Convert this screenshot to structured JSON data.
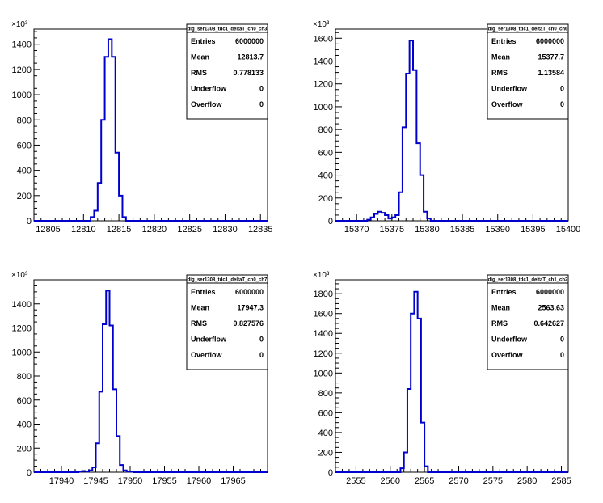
{
  "colors": {
    "histogram_line": "#0000cc",
    "frame": "#000000",
    "background": "#ffffff"
  },
  "chart_data": [
    {
      "type": "bar",
      "histogram_name": "dig_ser1308_tdc1_deltaT_ch0_ch3",
      "y_exponent": "×10³",
      "xlim": [
        12803,
        12836
      ],
      "ylim": [
        0,
        1520
      ],
      "x_ticks": [
        12805,
        12810,
        12815,
        12820,
        12825,
        12830,
        12835
      ],
      "x_tick_labels": [
        "12805",
        "12810",
        "12815",
        "12820",
        "12825",
        "12830",
        "12835"
      ],
      "y_ticks": [
        0,
        200,
        400,
        600,
        800,
        1000,
        1200,
        1400
      ],
      "y_tick_labels": [
        "0",
        "200",
        "400",
        "600",
        "800",
        "1000",
        "1200",
        "1400"
      ],
      "bin_edges": [
        12811.0,
        12811.5,
        12812.0,
        12812.5,
        12813.0,
        12813.5,
        12814.0,
        12814.5,
        12815.0,
        12815.5,
        12816.0
      ],
      "values": [
        30,
        80,
        300,
        800,
        1300,
        1440,
        1300,
        540,
        200,
        30
      ],
      "stats": [
        {
          "key": "Entries",
          "value": "6000000"
        },
        {
          "key": "Mean",
          "value": "12813.7"
        },
        {
          "key": "RMS",
          "value": "0.778133"
        },
        {
          "key": "Underflow",
          "value": "0"
        },
        {
          "key": "Overflow",
          "value": "0"
        }
      ]
    },
    {
      "type": "bar",
      "histogram_name": "dig_ser1308_tdc1_deltaT_ch0_ch6",
      "y_exponent": "×10³",
      "xlim": [
        15367,
        15400
      ],
      "ylim": [
        0,
        1680
      ],
      "x_ticks": [
        15370,
        15375,
        15380,
        15385,
        15390,
        15395,
        15400
      ],
      "x_tick_labels": [
        "15370",
        "15375",
        "15380",
        "15385",
        "15390",
        "15395",
        "15400"
      ],
      "y_ticks": [
        0,
        200,
        400,
        600,
        800,
        1000,
        1200,
        1400,
        1600
      ],
      "y_tick_labels": [
        "0",
        "200",
        "400",
        "600",
        "800",
        "1000",
        "1200",
        "1400",
        "1600"
      ],
      "bin_edges": [
        15371.5,
        15372.0,
        15372.5,
        15373.0,
        15373.5,
        15374.0,
        15374.5,
        15375.0,
        15375.5,
        15376.0,
        15376.5,
        15377.0,
        15377.5,
        15378.0,
        15378.5,
        15379.0,
        15379.5,
        15380.0,
        15380.5
      ],
      "values": [
        10,
        30,
        60,
        80,
        70,
        50,
        20,
        30,
        50,
        250,
        820,
        1290,
        1580,
        1320,
        680,
        400,
        80,
        20
      ],
      "stats": [
        {
          "key": "Entries",
          "value": "6000000"
        },
        {
          "key": "Mean",
          "value": "15377.7"
        },
        {
          "key": "RMS",
          "value": "1.13584"
        },
        {
          "key": "Underflow",
          "value": "0"
        },
        {
          "key": "Overflow",
          "value": "0"
        }
      ]
    },
    {
      "type": "bar",
      "histogram_name": "dig_ser1308_tdc1_deltaT_ch0_ch7",
      "y_exponent": "×10³",
      "xlim": [
        17936,
        17970
      ],
      "ylim": [
        0,
        1600
      ],
      "x_ticks": [
        17940,
        17945,
        17950,
        17955,
        17960,
        17965
      ],
      "x_tick_labels": [
        "17940",
        "17945",
        "17950",
        "17955",
        "17960",
        "17965"
      ],
      "y_ticks": [
        0,
        200,
        400,
        600,
        800,
        1000,
        1200,
        1400
      ],
      "y_tick_labels": [
        "0",
        "200",
        "400",
        "600",
        "800",
        "1000",
        "1200",
        "1400"
      ],
      "bin_edges": [
        17942.5,
        17943.0,
        17943.5,
        17944.0,
        17944.5,
        17945.0,
        17945.5,
        17946.0,
        17946.5,
        17947.0,
        17947.5,
        17948.0,
        17948.5,
        17949.0,
        17949.5,
        17950.0,
        17950.5
      ],
      "values": [
        5,
        10,
        5,
        15,
        40,
        240,
        670,
        1230,
        1510,
        1220,
        690,
        300,
        60,
        15,
        5,
        5
      ],
      "stats": [
        {
          "key": "Entries",
          "value": "6000000"
        },
        {
          "key": "Mean",
          "value": "17947.3"
        },
        {
          "key": "RMS",
          "value": "0.827576"
        },
        {
          "key": "Underflow",
          "value": "0"
        },
        {
          "key": "Overflow",
          "value": "0"
        }
      ]
    },
    {
      "type": "bar",
      "histogram_name": "dig_ser1308_tdc1_deltaT_ch1_ch2",
      "y_exponent": "×10³",
      "xlim": [
        2552,
        2586
      ],
      "ylim": [
        0,
        1940
      ],
      "x_ticks": [
        2555,
        2560,
        2565,
        2570,
        2575,
        2580,
        2585
      ],
      "x_tick_labels": [
        "2555",
        "2560",
        "2565",
        "2570",
        "2575",
        "2580",
        "2585"
      ],
      "y_ticks": [
        0,
        200,
        400,
        600,
        800,
        1000,
        1200,
        1400,
        1600,
        1800
      ],
      "y_tick_labels": [
        "0",
        "200",
        "400",
        "600",
        "800",
        "1000",
        "1200",
        "1400",
        "1600",
        "1800"
      ],
      "bin_edges": [
        2561.5,
        2562.0,
        2562.5,
        2563.0,
        2563.5,
        2564.0,
        2564.5,
        2565.0,
        2565.5
      ],
      "values": [
        40,
        200,
        840,
        1600,
        1820,
        1550,
        500,
        60
      ],
      "stats": [
        {
          "key": "Entries",
          "value": "6000000"
        },
        {
          "key": "Mean",
          "value": "2563.63"
        },
        {
          "key": "RMS",
          "value": "0.642627"
        },
        {
          "key": "Underflow",
          "value": "0"
        },
        {
          "key": "Overflow",
          "value": "0"
        }
      ]
    }
  ]
}
